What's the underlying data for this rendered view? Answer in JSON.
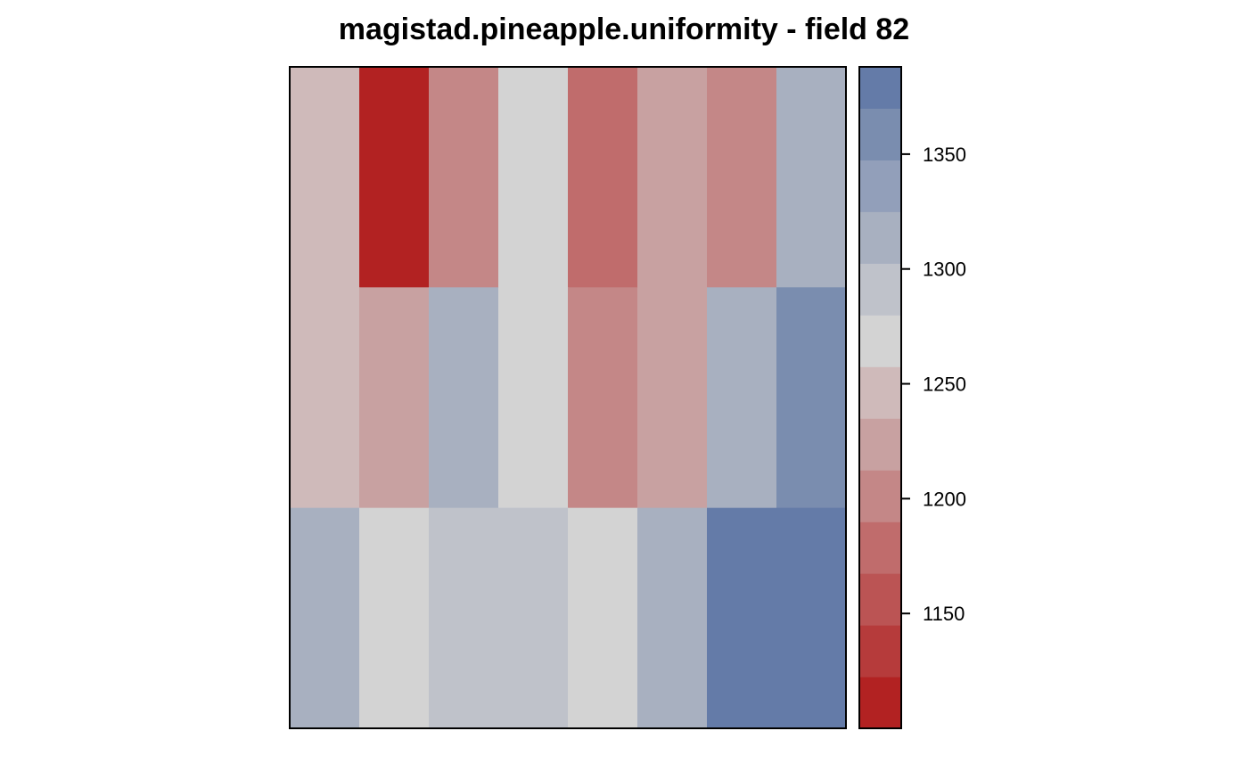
{
  "chart_data": {
    "type": "heatmap",
    "title": "magistad.pineapple.uniformity - field 82",
    "xlabel": "",
    "ylabel": "",
    "n_cols": 8,
    "n_rows": 3,
    "cell_colors": [
      [
        "#cfbaba",
        "#b22222",
        "#c48787",
        "#d3d3d3",
        "#c06c6c",
        "#c8a1a1",
        "#c48787",
        "#a8b0c0"
      ],
      [
        "#cfbaba",
        "#c8a1a1",
        "#a8b0c0",
        "#d3d3d3",
        "#c48787",
        "#c8a1a1",
        "#a8b0c0",
        "#7a8daf"
      ],
      [
        "#a8b0c0",
        "#d3d3d3",
        "#bfc2ca",
        "#bfc2ca",
        "#d3d3d3",
        "#a8b0c0",
        "#647ba8",
        "#647ba8"
      ]
    ],
    "legend": {
      "placement": "right",
      "range": [
        1100,
        1388
      ],
      "bins": [
        {
          "from": 1100,
          "to": 1122.5,
          "color": "#b22222"
        },
        {
          "from": 1122.5,
          "to": 1145,
          "color": "#b63b3b"
        },
        {
          "from": 1145,
          "to": 1167.5,
          "color": "#bb5454"
        },
        {
          "from": 1167.5,
          "to": 1190,
          "color": "#c06c6c"
        },
        {
          "from": 1190,
          "to": 1212.5,
          "color": "#c48787"
        },
        {
          "from": 1212.5,
          "to": 1235,
          "color": "#c8a1a1"
        },
        {
          "from": 1235,
          "to": 1257.5,
          "color": "#cfbaba"
        },
        {
          "from": 1257.5,
          "to": 1280,
          "color": "#d3d3d3"
        },
        {
          "from": 1280,
          "to": 1302.5,
          "color": "#bfc2ca"
        },
        {
          "from": 1302.5,
          "to": 1325,
          "color": "#a8b0c0"
        },
        {
          "from": 1325,
          "to": 1347.5,
          "color": "#929fba"
        },
        {
          "from": 1347.5,
          "to": 1370,
          "color": "#7a8daf"
        },
        {
          "from": 1370,
          "to": 1388,
          "color": "#647ba8"
        }
      ],
      "ticks": [
        {
          "value": 1150,
          "label": "1150"
        },
        {
          "value": 1200,
          "label": "1200"
        },
        {
          "value": 1250,
          "label": "1250"
        },
        {
          "value": 1300,
          "label": "1300"
        },
        {
          "value": 1350,
          "label": "1350"
        }
      ]
    }
  }
}
